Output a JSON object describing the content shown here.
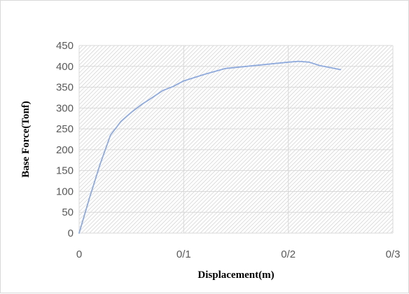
{
  "chart_data": {
    "type": "line",
    "title": "",
    "xlabel": "Displacement(m)",
    "ylabel": "Base Force(Tonf)",
    "x_tick_labels": [
      "0",
      "0/1",
      "0/2",
      "0/3"
    ],
    "y_tick_labels": [
      "0",
      "50",
      "100",
      "150",
      "200",
      "250",
      "300",
      "350",
      "400",
      "450"
    ],
    "xlim": [
      0,
      0.3
    ],
    "ylim": [
      0,
      450
    ],
    "grid": true,
    "legend": "none",
    "series": [
      {
        "color": "#8faadc",
        "x": [
          0,
          0.01,
          0.02,
          0.03,
          0.04,
          0.05,
          0.06,
          0.07,
          0.08,
          0.09,
          0.1,
          0.12,
          0.14,
          0.16,
          0.18,
          0.2,
          0.21,
          0.22,
          0.23,
          0.25
        ],
        "y": [
          0,
          85,
          165,
          235,
          268,
          290,
          309,
          325,
          342,
          352,
          365,
          381,
          395,
          400,
          405,
          410,
          412,
          410,
          402,
          392
        ]
      }
    ],
    "plot_background": "diagonal-hatch"
  }
}
